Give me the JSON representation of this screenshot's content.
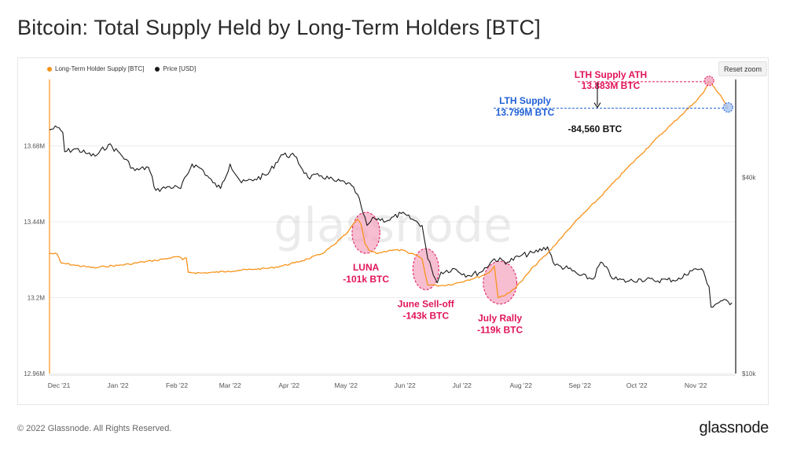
{
  "page": {
    "title": "Bitcoin: Total Supply Held by Long-Term Holders [BTC]",
    "copyright": "© 2022 Glassnode. All Rights Reserved.",
    "brand": "glassnode",
    "watermark": "glassnode",
    "reset_zoom": "Reset zoom"
  },
  "colors": {
    "lth_supply": "#f7931a",
    "price": "#1a1a1a",
    "annotation_pink": "#e0145a",
    "annotation_blue": "#1f5fd6",
    "highlight_fill": "#f4a3bd",
    "grid": "#ececec"
  },
  "chart_data": {
    "type": "line",
    "title": "Bitcoin: Total Supply Held by Long-Term Holders [BTC]",
    "legend": [
      "Long-Term Holder Supply [BTC]",
      "Price [USD]"
    ],
    "legend_position": "top-left",
    "x_tick_labels": [
      "Dec '21",
      "Jan '22",
      "Feb '22",
      "Mar '22",
      "Apr '22",
      "May '22",
      "Jun '22",
      "Jul '22",
      "Aug '22",
      "Sep '22",
      "Oct '22",
      "Nov '22"
    ],
    "x_range": [
      "2021-11-26",
      "2022-11-22"
    ],
    "y_left": {
      "ticks": [
        "12.96M",
        "13.2M",
        "13.44M",
        "13.68M"
      ],
      "tick_values": [
        12.96,
        13.2,
        13.44,
        13.68
      ],
      "range": [
        12.96,
        13.89
      ],
      "unit": "M BTC"
    },
    "y_right": {
      "ticks": [
        "$10k",
        "$40k"
      ],
      "tick_values": [
        10000,
        40000
      ],
      "scale": "log",
      "range": [
        10000,
        80000
      ]
    },
    "grid": "horizontal",
    "series": [
      {
        "name": "Long-Term Holder Supply [BTC]",
        "axis": "left",
        "points": [
          [
            "2021-11-26",
            13.34
          ],
          [
            "2021-11-30",
            13.338
          ],
          [
            "2021-12-02",
            13.31
          ],
          [
            "2021-12-05",
            13.307
          ],
          [
            "2021-12-10",
            13.302
          ],
          [
            "2021-12-15",
            13.298
          ],
          [
            "2021-12-20",
            13.294
          ],
          [
            "2021-12-25",
            13.299
          ],
          [
            "2022-01-01",
            13.302
          ],
          [
            "2022-01-07",
            13.306
          ],
          [
            "2022-01-14",
            13.313
          ],
          [
            "2022-01-21",
            13.318
          ],
          [
            "2022-01-28",
            13.325
          ],
          [
            "2022-02-02",
            13.33
          ],
          [
            "2022-02-04",
            13.32
          ],
          [
            "2022-02-06",
            13.325
          ],
          [
            "2022-02-07",
            13.28
          ],
          [
            "2022-02-14",
            13.278
          ],
          [
            "2022-02-21",
            13.28
          ],
          [
            "2022-02-28",
            13.284
          ],
          [
            "2022-03-07",
            13.287
          ],
          [
            "2022-03-14",
            13.29
          ],
          [
            "2022-03-21",
            13.293
          ],
          [
            "2022-03-28",
            13.3
          ],
          [
            "2022-04-04",
            13.31
          ],
          [
            "2022-04-11",
            13.323
          ],
          [
            "2022-04-18",
            13.338
          ],
          [
            "2022-04-25",
            13.368
          ],
          [
            "2022-05-02",
            13.408
          ],
          [
            "2022-05-07",
            13.448
          ],
          [
            "2022-05-09",
            13.43
          ],
          [
            "2022-05-11",
            13.37
          ],
          [
            "2022-05-13",
            13.35
          ],
          [
            "2022-05-17",
            13.34
          ],
          [
            "2022-05-24",
            13.35
          ],
          [
            "2022-05-31",
            13.35
          ],
          [
            "2022-06-03",
            13.34
          ],
          [
            "2022-06-07",
            13.335
          ],
          [
            "2022-06-10",
            13.322
          ],
          [
            "2022-06-13",
            13.24
          ],
          [
            "2022-06-15",
            13.24
          ],
          [
            "2022-06-20",
            13.238
          ],
          [
            "2022-06-27",
            13.244
          ],
          [
            "2022-07-04",
            13.256
          ],
          [
            "2022-07-11",
            13.268
          ],
          [
            "2022-07-15",
            13.278
          ],
          [
            "2022-07-18",
            13.3
          ],
          [
            "2022-07-20",
            13.2
          ],
          [
            "2022-07-22",
            13.205
          ],
          [
            "2022-07-26",
            13.215
          ],
          [
            "2022-08-01",
            13.25
          ],
          [
            "2022-08-08",
            13.3
          ],
          [
            "2022-08-15",
            13.34
          ],
          [
            "2022-08-22",
            13.388
          ],
          [
            "2022-08-29",
            13.436
          ],
          [
            "2022-09-05",
            13.478
          ],
          [
            "2022-09-12",
            13.52
          ],
          [
            "2022-09-19",
            13.565
          ],
          [
            "2022-09-26",
            13.61
          ],
          [
            "2022-10-03",
            13.652
          ],
          [
            "2022-10-10",
            13.695
          ],
          [
            "2022-10-17",
            13.735
          ],
          [
            "2022-10-24",
            13.775
          ],
          [
            "2022-10-31",
            13.815
          ],
          [
            "2022-11-05",
            13.848
          ],
          [
            "2022-11-08",
            13.883
          ],
          [
            "2022-11-10",
            13.87
          ],
          [
            "2022-11-14",
            13.84
          ],
          [
            "2022-11-18",
            13.799
          ]
        ]
      },
      {
        "name": "Price [USD]",
        "axis": "right",
        "points": [
          [
            "2021-11-26",
            56000
          ],
          [
            "2021-11-30",
            57000
          ],
          [
            "2021-12-03",
            55000
          ],
          [
            "2021-12-04",
            48000
          ],
          [
            "2021-12-10",
            49000
          ],
          [
            "2021-12-15",
            47500
          ],
          [
            "2021-12-20",
            46500
          ],
          [
            "2021-12-27",
            50500
          ],
          [
            "2022-01-02",
            47500
          ],
          [
            "2022-01-10",
            42000
          ],
          [
            "2022-01-17",
            43000
          ],
          [
            "2022-01-21",
            36500
          ],
          [
            "2022-01-28",
            37500
          ],
          [
            "2022-02-03",
            37000
          ],
          [
            "2022-02-09",
            44000
          ],
          [
            "2022-02-14",
            42500
          ],
          [
            "2022-02-20",
            38500
          ],
          [
            "2022-02-24",
            37000
          ],
          [
            "2022-03-01",
            44000
          ],
          [
            "2022-03-07",
            38500
          ],
          [
            "2022-03-14",
            39500
          ],
          [
            "2022-03-21",
            41000
          ],
          [
            "2022-03-28",
            47000
          ],
          [
            "2022-04-04",
            46500
          ],
          [
            "2022-04-11",
            40000
          ],
          [
            "2022-04-18",
            40500
          ],
          [
            "2022-04-25",
            39000
          ],
          [
            "2022-05-02",
            38500
          ],
          [
            "2022-05-07",
            35500
          ],
          [
            "2022-05-10",
            31000
          ],
          [
            "2022-05-12",
            28500
          ],
          [
            "2022-05-16",
            30000
          ],
          [
            "2022-05-23",
            29500
          ],
          [
            "2022-05-30",
            31000
          ],
          [
            "2022-06-06",
            29500
          ],
          [
            "2022-06-10",
            28500
          ],
          [
            "2022-06-13",
            22500
          ],
          [
            "2022-06-15",
            21000
          ],
          [
            "2022-06-18",
            19000
          ],
          [
            "2022-06-20",
            20500
          ],
          [
            "2022-06-27",
            21000
          ],
          [
            "2022-07-04",
            20000
          ],
          [
            "2022-07-11",
            20500
          ],
          [
            "2022-07-18",
            22500
          ],
          [
            "2022-07-25",
            22000
          ],
          [
            "2022-08-01",
            23000
          ],
          [
            "2022-08-08",
            23500
          ],
          [
            "2022-08-15",
            24500
          ],
          [
            "2022-08-19",
            21500
          ],
          [
            "2022-08-26",
            21000
          ],
          [
            "2022-09-01",
            20000
          ],
          [
            "2022-09-08",
            19500
          ],
          [
            "2022-09-12",
            22000
          ],
          [
            "2022-09-19",
            19500
          ],
          [
            "2022-09-26",
            19200
          ],
          [
            "2022-10-03",
            19500
          ],
          [
            "2022-10-10",
            19300
          ],
          [
            "2022-10-17",
            19400
          ],
          [
            "2022-10-24",
            19500
          ],
          [
            "2022-10-29",
            20700
          ],
          [
            "2022-11-04",
            21000
          ],
          [
            "2022-11-08",
            18500
          ],
          [
            "2022-11-09",
            16000
          ],
          [
            "2022-11-14",
            16700
          ],
          [
            "2022-11-20",
            16500
          ]
        ]
      }
    ],
    "annotations": [
      {
        "type": "event",
        "label": "LUNA",
        "value": "-101k BTC",
        "x_start": "2022-05-05",
        "x_end": "2022-05-18",
        "y_low": 13.34,
        "y_high": 13.47
      },
      {
        "type": "event",
        "label": "June Sell-off",
        "value": "-143k BTC",
        "x_start": "2022-06-06",
        "x_end": "2022-06-18",
        "y_low": 13.225,
        "y_high": 13.355
      },
      {
        "type": "event",
        "label": "July Rally",
        "value": "-119k BTC",
        "x_start": "2022-07-13",
        "x_end": "2022-07-29",
        "y_low": 13.18,
        "y_high": 13.315
      },
      {
        "type": "level",
        "label": "LTH Supply ATH",
        "value": "13.883M BTC",
        "x": "2022-11-08",
        "y": 13.883
      },
      {
        "type": "level",
        "label": "LTH Supply",
        "value": "13.799M BTC",
        "x": "2022-11-18",
        "y": 13.799
      },
      {
        "type": "difference",
        "label": "-84,560 BTC"
      }
    ]
  }
}
